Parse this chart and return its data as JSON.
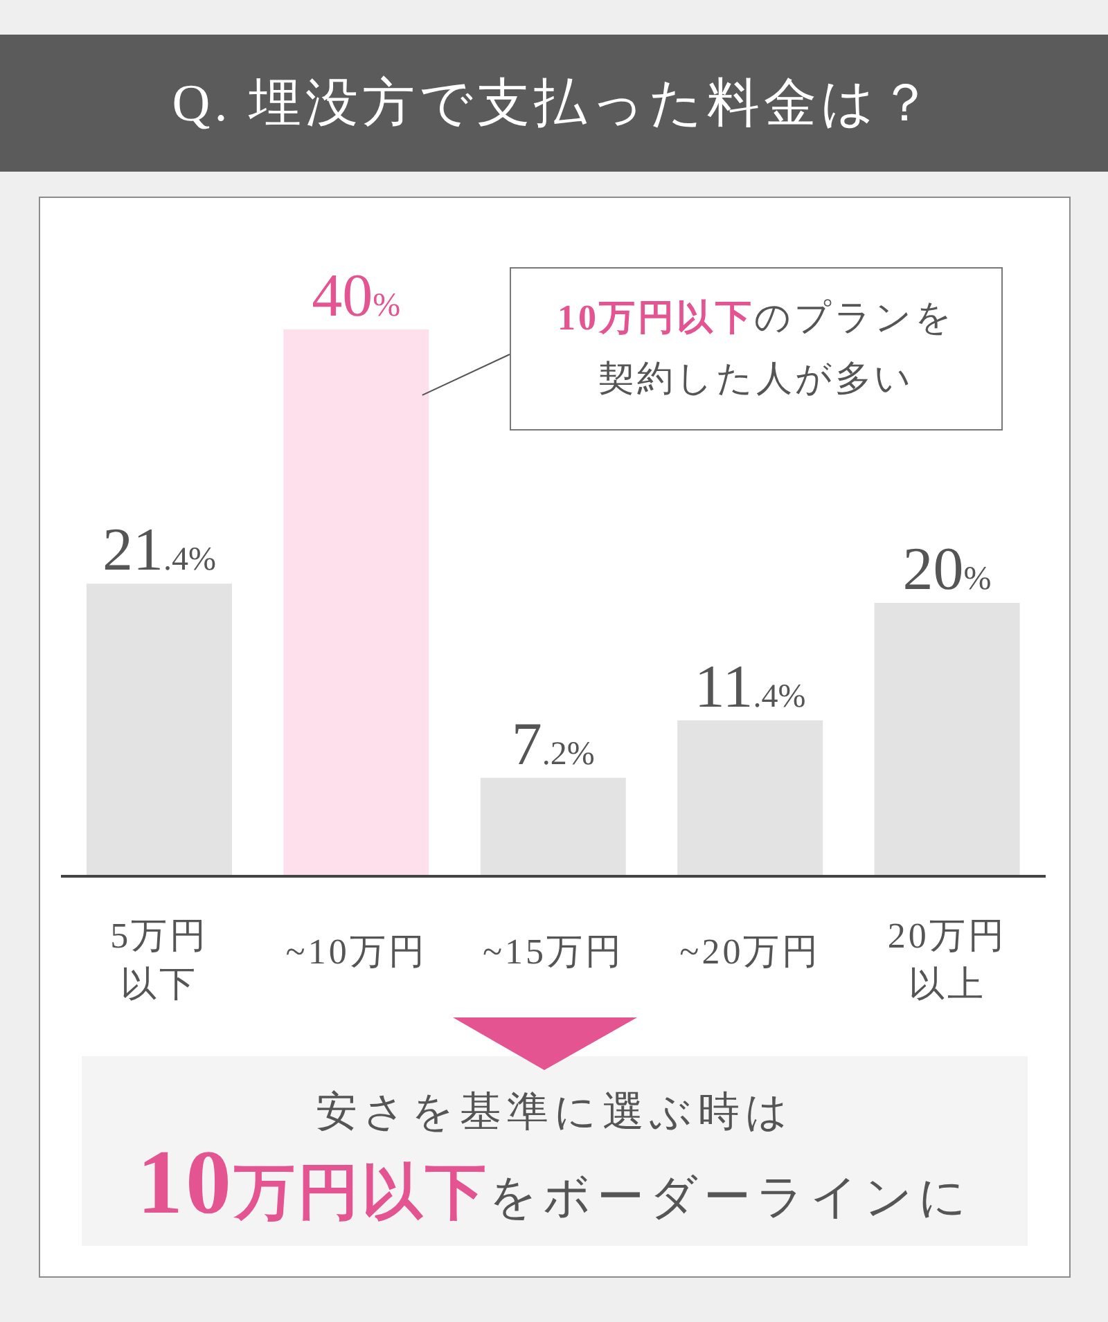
{
  "chart_data": {
    "type": "bar",
    "title": "Q. 埋没方で支払った料金は？",
    "categories": [
      "5万円以下",
      "~10万円",
      "~15万円",
      "~20万円",
      "20万円以上"
    ],
    "values": [
      21.4,
      40,
      7.2,
      11.4,
      20
    ],
    "colors": [
      "#e3e3e3",
      "#fde0ec",
      "#e3e3e3",
      "#e3e3e3",
      "#e3e3e3"
    ],
    "value_labels": [
      "21.4%",
      "40%",
      "7.2%",
      "11.4%",
      "20%"
    ],
    "tick_labels": "x",
    "annotations": [
      "10万円以下",
      "のプランを",
      "契約した人が多い",
      "安さを基準に選ぶ時は",
      "10万円以下",
      "をボーダーラインに"
    ]
  }
}
